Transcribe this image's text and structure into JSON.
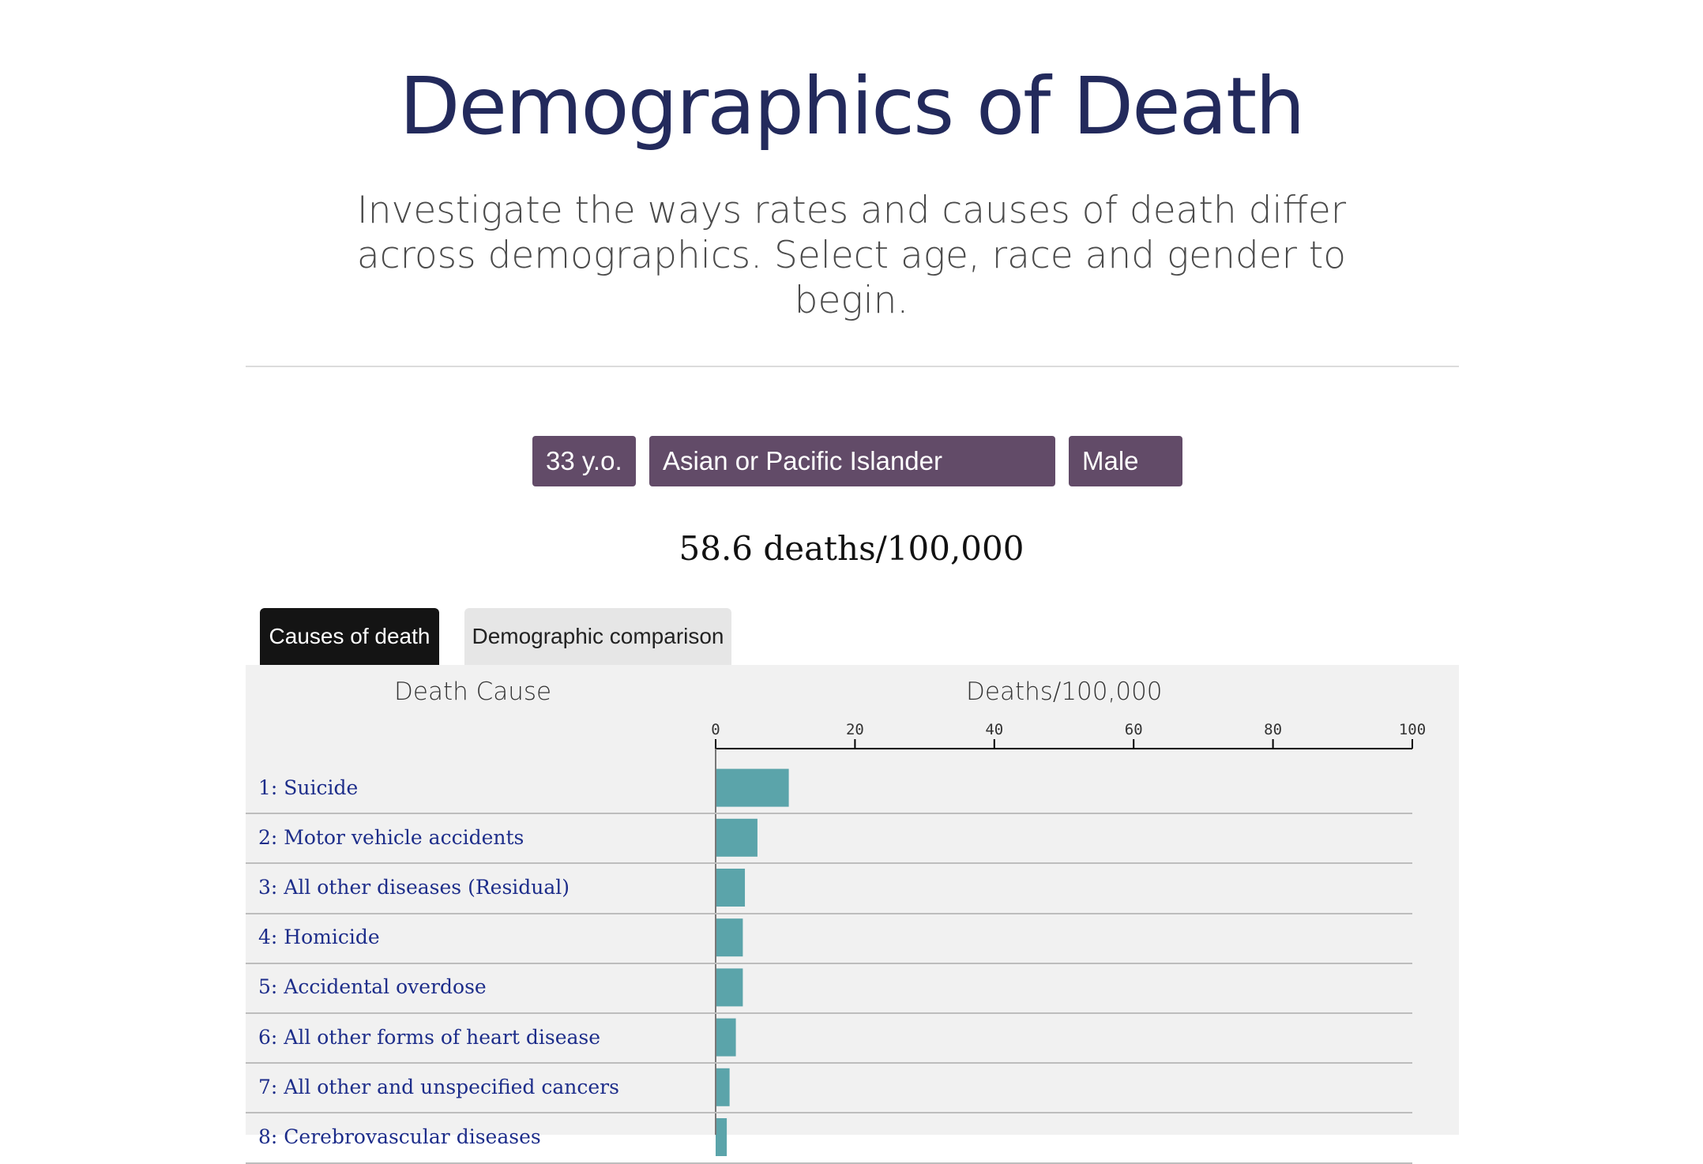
{
  "header": {
    "title": "Demographics of Death",
    "subtitle": "Investigate the ways rates and causes of death differ across demographics. Select age, race and gender to begin."
  },
  "selectors": {
    "age": "33 y.o.",
    "race": "Asian or Pacific Islander",
    "gender": "Male"
  },
  "rate_text": "58.6 deaths/100,000",
  "tabs": {
    "causes": "Causes of death",
    "comparison": "Demographic comparison",
    "active": "causes"
  },
  "colors": {
    "bar": "#5ba4aa",
    "selector": "#624b68",
    "label": "#1d2d8a"
  },
  "chart_data": {
    "type": "bar",
    "orientation": "horizontal",
    "category_header": "Death Cause",
    "value_header": "Deaths/100,000",
    "xlim": [
      0,
      100
    ],
    "ticks": [
      0,
      20,
      40,
      60,
      80,
      100
    ],
    "categories": [
      "1: Suicide",
      "2: Motor vehicle accidents",
      "3: All other diseases (Residual)",
      "4: Homicide",
      "5: Accidental overdose",
      "6: All other forms of heart disease",
      "7: All other and unspecified cancers",
      "8: Cerebrovascular diseases"
    ],
    "values": [
      10.5,
      6.0,
      4.2,
      3.9,
      3.9,
      2.9,
      2.0,
      1.6
    ]
  }
}
